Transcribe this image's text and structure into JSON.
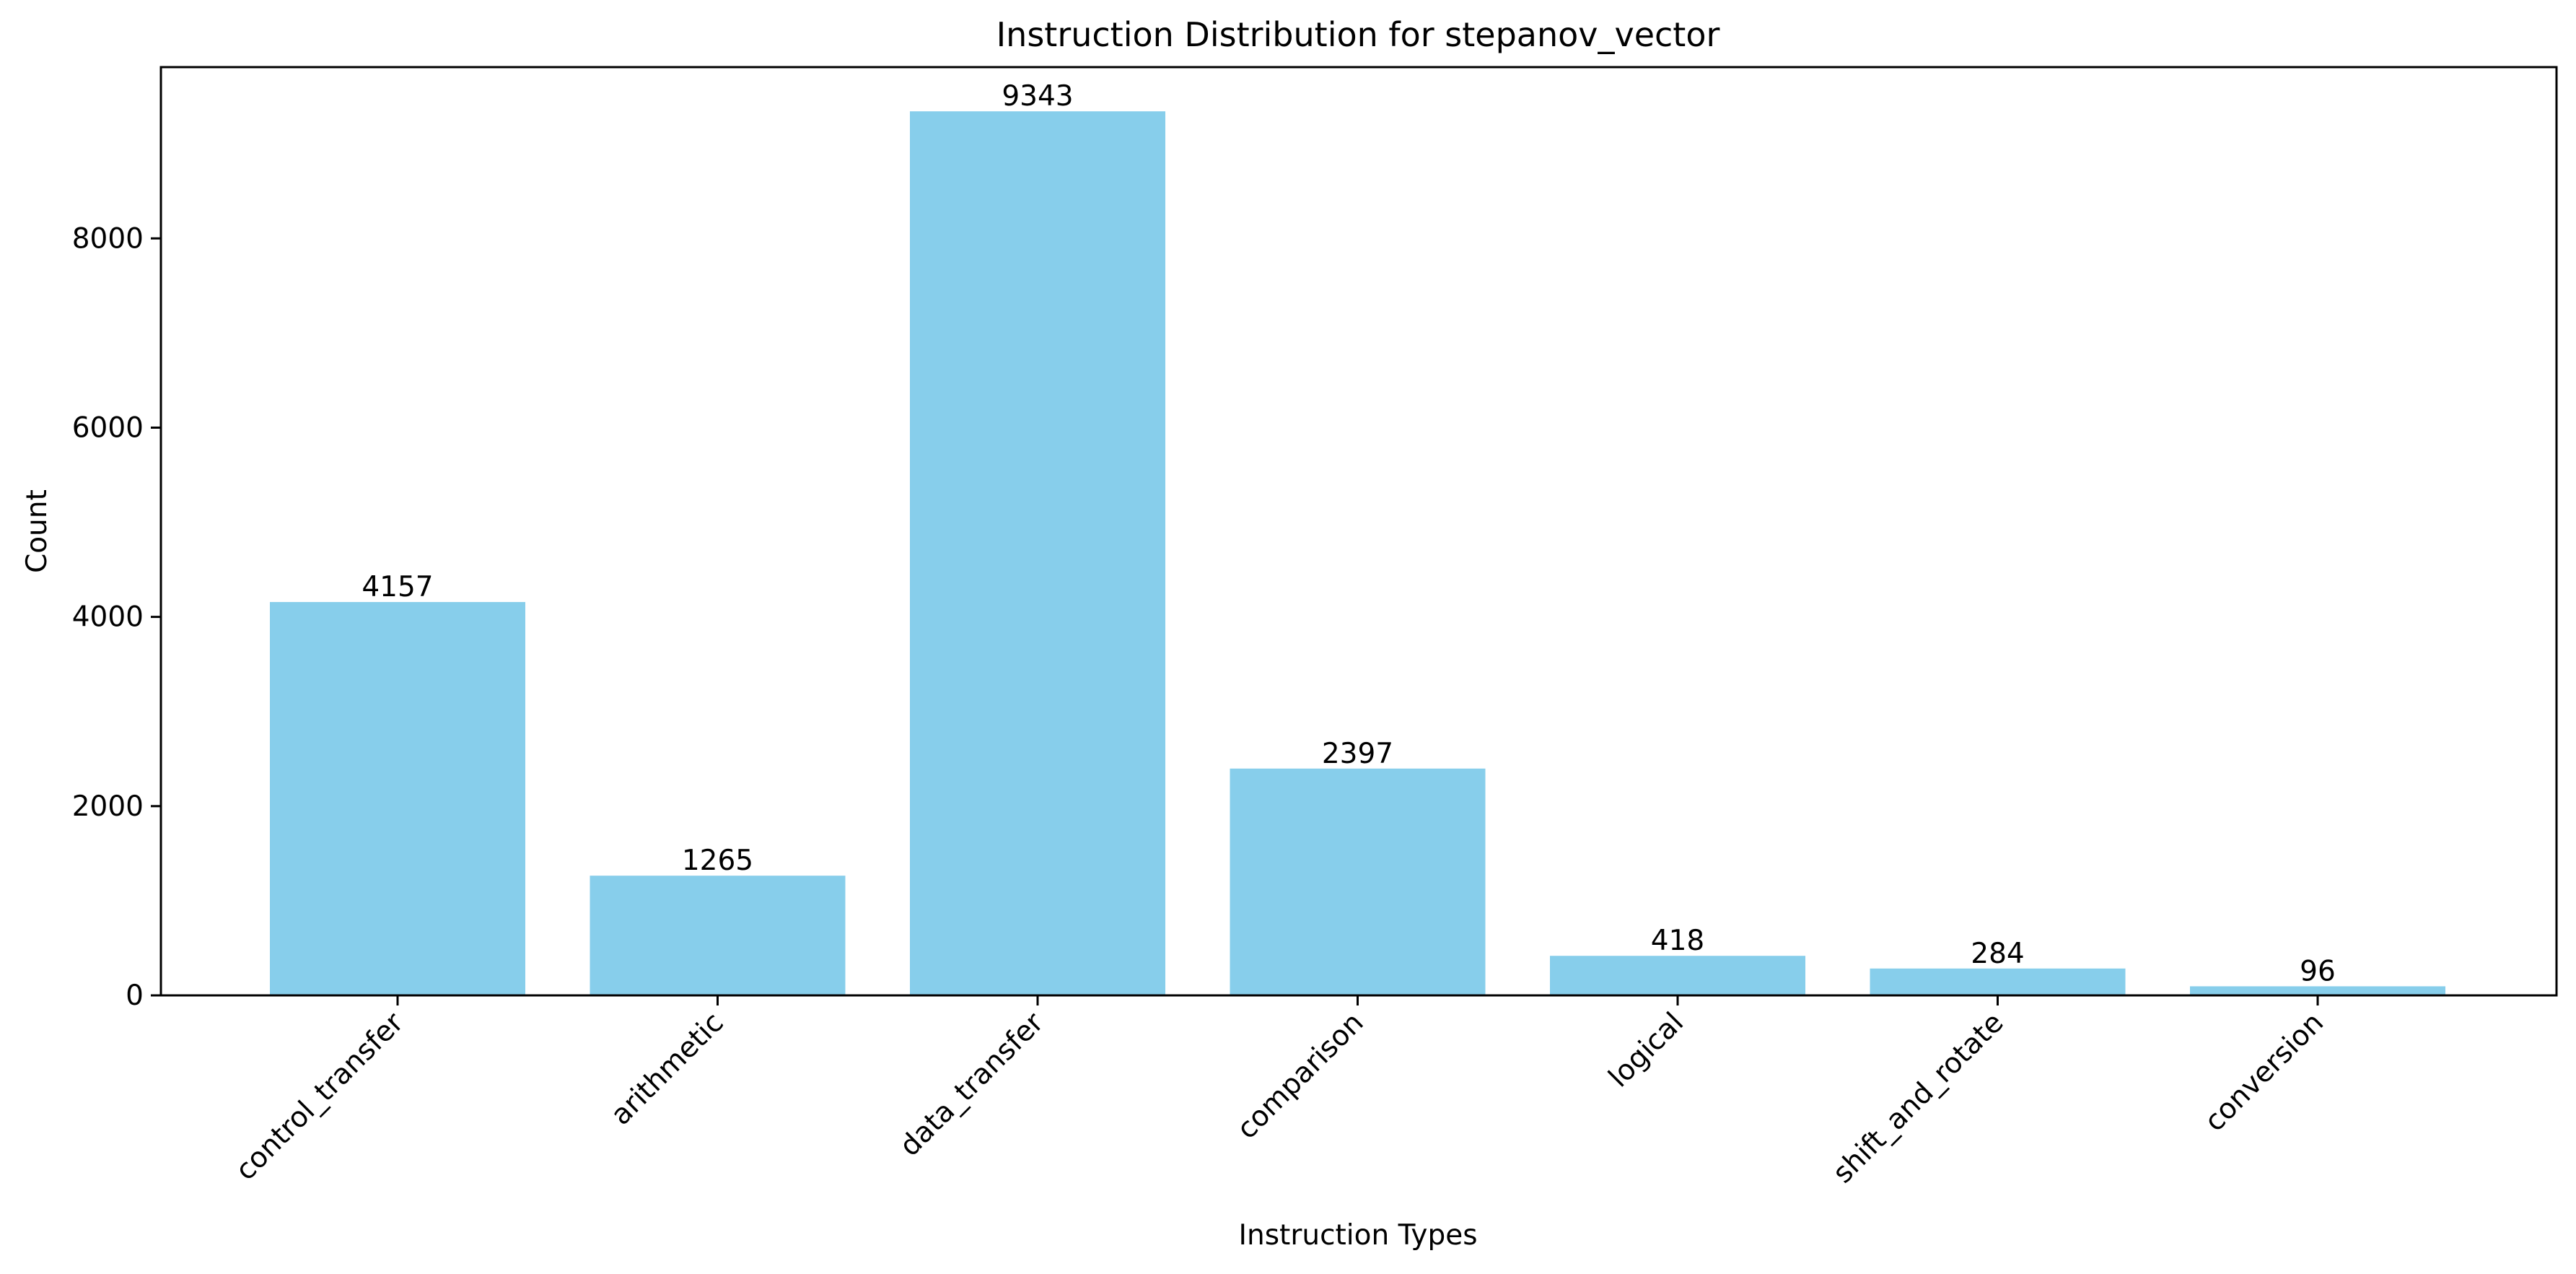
{
  "chart_data": {
    "type": "bar",
    "title": "Instruction Distribution for stepanov_vector",
    "xlabel": "Instruction Types",
    "ylabel": "Count",
    "categories": [
      "control_transfer",
      "arithmetic",
      "data_transfer",
      "comparison",
      "logical",
      "shift_and_rotate",
      "conversion"
    ],
    "values": [
      4157,
      1265,
      9343,
      2397,
      418,
      284,
      96
    ],
    "data_labels": [
      "4157",
      "1265",
      "9343",
      "2397",
      "418",
      "284",
      "96"
    ],
    "yticks": [
      0,
      2000,
      4000,
      6000,
      8000
    ],
    "ytick_labels": [
      "0",
      "2000",
      "4000",
      "6000",
      "8000"
    ],
    "ylim": [
      0,
      9810
    ],
    "grid": false,
    "bar_color": "#87CEEB"
  }
}
